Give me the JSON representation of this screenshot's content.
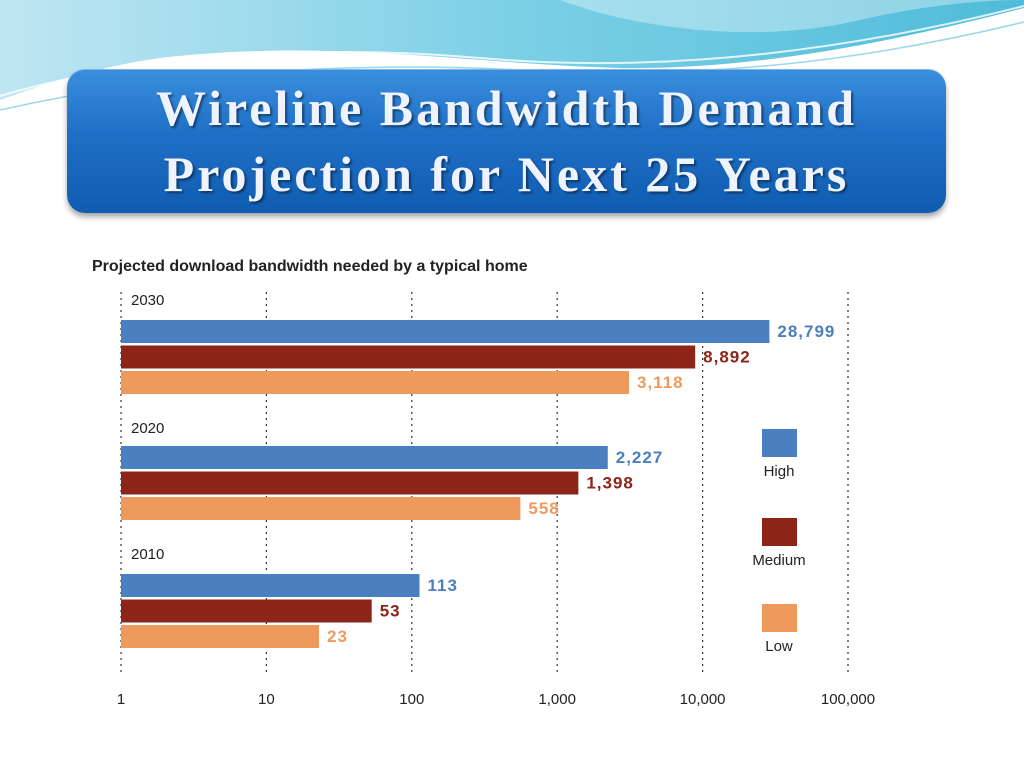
{
  "slide": {
    "title_line1": "Wireline Bandwidth Demand",
    "title_line2": "Projection for Next 25 Years"
  },
  "colors": {
    "title_bg": "#1f6fc6",
    "high": "#4a7fc0",
    "medium": "#8c2418",
    "low": "#ef9a5c"
  },
  "chart_data": {
    "type": "bar",
    "orientation": "horizontal",
    "title": "Projected download bandwidth needed by a typical home",
    "xscale": "log",
    "xlim": [
      1,
      100000
    ],
    "xticks": [
      "1",
      "10",
      "100",
      "1,000",
      "10,000",
      "100,000"
    ],
    "xtick_values": [
      1,
      10,
      100,
      1000,
      10000,
      100000
    ],
    "grid": "vertical dotted",
    "categories": [
      "2030",
      "2020",
      "2010"
    ],
    "series": [
      {
        "name": "High",
        "color": "#4a7fc0",
        "values": [
          28799,
          2227,
          113
        ],
        "labels": [
          "28,799",
          "2,227",
          "113"
        ]
      },
      {
        "name": "Medium",
        "color": "#8c2418",
        "values": [
          8892,
          1398,
          53
        ],
        "labels": [
          "8,892",
          "1,398",
          "53"
        ]
      },
      {
        "name": "Low",
        "color": "#ef9a5c",
        "values": [
          3118,
          558,
          23
        ],
        "labels": [
          "3,118",
          "558",
          "23"
        ]
      }
    ],
    "legend_position": "right"
  }
}
